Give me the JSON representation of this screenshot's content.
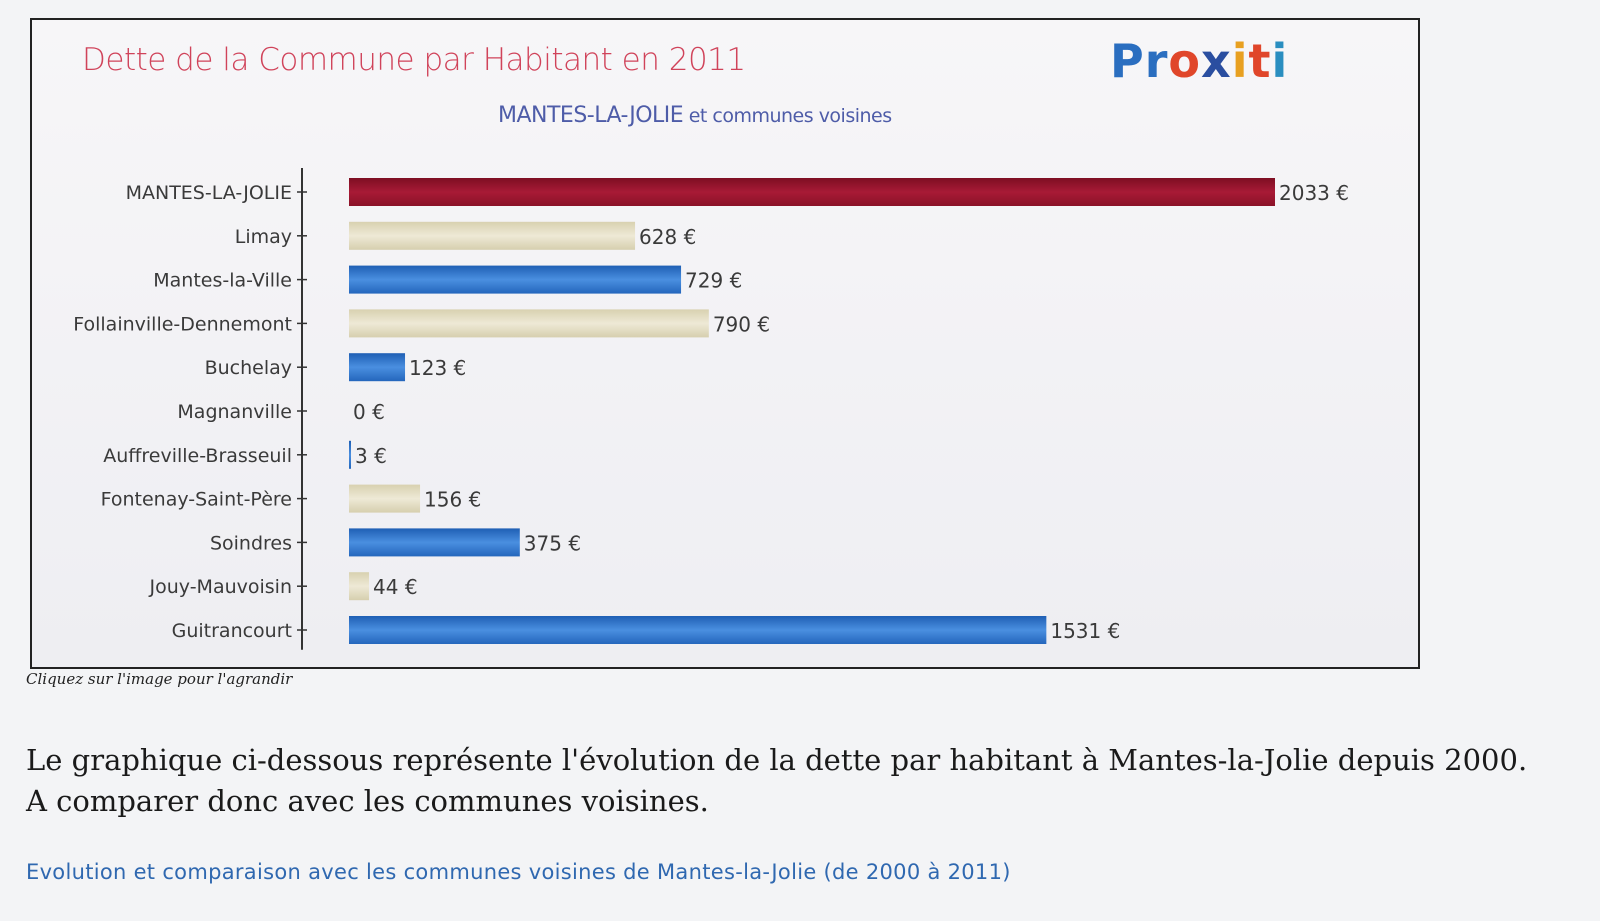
{
  "chart_data": {
    "type": "bar",
    "orientation": "horizontal",
    "title": "Dette de la Commune par Habitant en 2011",
    "subtitle": {
      "main": "MANTES-LA-JOLIE",
      "rest": " et communes voisines"
    },
    "categories": [
      "MANTES-LA-JOLIE",
      "Limay",
      "Mantes-la-Ville",
      "Follainville-Dennemont",
      "Buchelay",
      "Magnanville",
      "Auffreville-Brasseuil",
      "Fontenay-Saint-Père",
      "Soindres",
      "Jouy-Mauvoisin",
      "Guitrancourt"
    ],
    "values": [
      2033,
      628,
      729,
      790,
      123,
      0,
      3,
      156,
      375,
      44,
      1531
    ],
    "value_labels": [
      "2033 €",
      "628 €",
      "729 €",
      "790 €",
      "123 €",
      "0 €",
      "3 €",
      "156 €",
      "375 €",
      "44 €",
      "1531 €"
    ],
    "bar_colors": [
      "red",
      "beige",
      "blue",
      "beige",
      "blue",
      "beige",
      "blue",
      "beige",
      "blue",
      "beige",
      "blue"
    ],
    "unit": "€",
    "xlim": [
      0,
      2033
    ],
    "grid": false,
    "legend": "none"
  },
  "colors": {
    "red": "#9a1530",
    "beige": "#e2dcc0",
    "blue": "#2f72c8",
    "title": "#d0435a",
    "subtitle": "#4e5ca8",
    "link": "#2f68b0"
  },
  "logo": {
    "letters": [
      "P",
      "r",
      "o",
      "x",
      "i",
      "t",
      "i"
    ],
    "colors": [
      "#2a6ec0",
      "#2a6ec0",
      "#e0462a",
      "#2a4ea0",
      "#e8a020",
      "#e0462a",
      "#2a8ec0"
    ]
  },
  "caption": "Cliquez sur l'image pour l'agrandir",
  "paragraph": {
    "line1": "Le graphique ci-dessous représente l'évolution de la dette par habitant à Mantes-la-Jolie depuis 2000.",
    "line2": "A comparer donc avec les communes voisines."
  },
  "link": "Evolution et comparaison avec les communes voisines de Mantes-la-Jolie (de 2000 à 2011)"
}
